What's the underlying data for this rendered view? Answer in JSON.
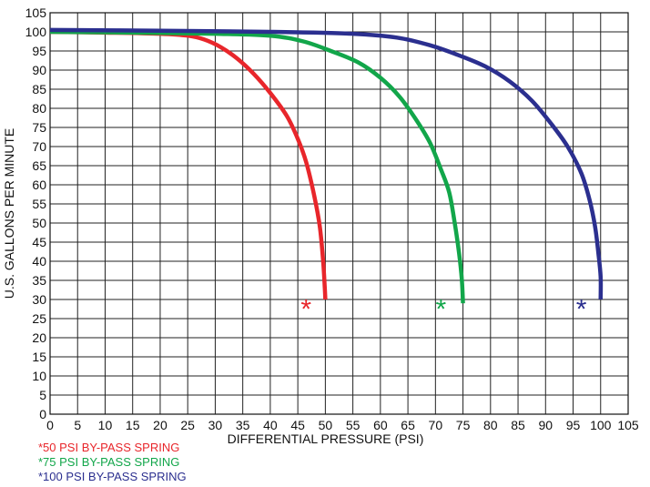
{
  "chart_data": {
    "type": "line",
    "title": "",
    "xlabel": "DIFFERENTIAL PRESSURE (PSI)",
    "ylabel": "U.S. GALLONS PER MINUTE",
    "xlim": [
      0,
      105
    ],
    "ylim": [
      0,
      105
    ],
    "x_ticks": [
      "0",
      "5",
      "10",
      "15",
      "20",
      "25",
      "30",
      "35",
      "40",
      "45",
      "50",
      "55",
      "60",
      "65",
      "70",
      "75",
      "80",
      "85",
      "90",
      "95",
      "100",
      "105"
    ],
    "y_ticks": [
      "0",
      "5",
      "10",
      "15",
      "20",
      "25",
      "30",
      "35",
      "40",
      "45",
      "50",
      "55",
      "60",
      "65",
      "70",
      "75",
      "80",
      "85",
      "90",
      "95",
      "100",
      "105"
    ],
    "grid": true,
    "legend_position": "bottom-left",
    "series": [
      {
        "name": "*50 PSI BY-PASS SPRING",
        "color": "#e8262b",
        "marker": "*",
        "marker_point": [
          46.5,
          28.5
        ],
        "points": [
          [
            0,
            100
          ],
          [
            10,
            99.8
          ],
          [
            20,
            99.5
          ],
          [
            25,
            99
          ],
          [
            28,
            98
          ],
          [
            31,
            96
          ],
          [
            34,
            93
          ],
          [
            37,
            89
          ],
          [
            40,
            84
          ],
          [
            43,
            78
          ],
          [
            45,
            72
          ],
          [
            46.5,
            66
          ],
          [
            48,
            57
          ],
          [
            49,
            49
          ],
          [
            49.6,
            40
          ],
          [
            49.9,
            33
          ],
          [
            50,
            30
          ]
        ]
      },
      {
        "name": "*75 PSI BY-PASS SPRING",
        "color": "#12a64a",
        "marker": "*",
        "marker_point": [
          71,
          28.5
        ],
        "points": [
          [
            0,
            100
          ],
          [
            15,
            99.8
          ],
          [
            30,
            99.5
          ],
          [
            40,
            99
          ],
          [
            46,
            97.5
          ],
          [
            51,
            95
          ],
          [
            56,
            92
          ],
          [
            60,
            88
          ],
          [
            63.5,
            83
          ],
          [
            66.5,
            77
          ],
          [
            69,
            71
          ],
          [
            71,
            64
          ],
          [
            72.5,
            58
          ],
          [
            73.5,
            50
          ],
          [
            74.3,
            42
          ],
          [
            74.8,
            35
          ],
          [
            75,
            29
          ]
        ]
      },
      {
        "name": "*100 PSI BY-PASS SPRING",
        "color": "#2b2f8f",
        "marker": "*",
        "marker_point": [
          96.5,
          28.5
        ],
        "points": [
          [
            0,
            100.5
          ],
          [
            20,
            100.3
          ],
          [
            40,
            100
          ],
          [
            55,
            99.5
          ],
          [
            63,
            98.5
          ],
          [
            69,
            96.5
          ],
          [
            74,
            94
          ],
          [
            79,
            91
          ],
          [
            83.5,
            87
          ],
          [
            87.5,
            82
          ],
          [
            91,
            76
          ],
          [
            94,
            70
          ],
          [
            96.5,
            63
          ],
          [
            98,
            56
          ],
          [
            99,
            49
          ],
          [
            99.6,
            42
          ],
          [
            100,
            36
          ],
          [
            100,
            30
          ]
        ]
      }
    ]
  }
}
